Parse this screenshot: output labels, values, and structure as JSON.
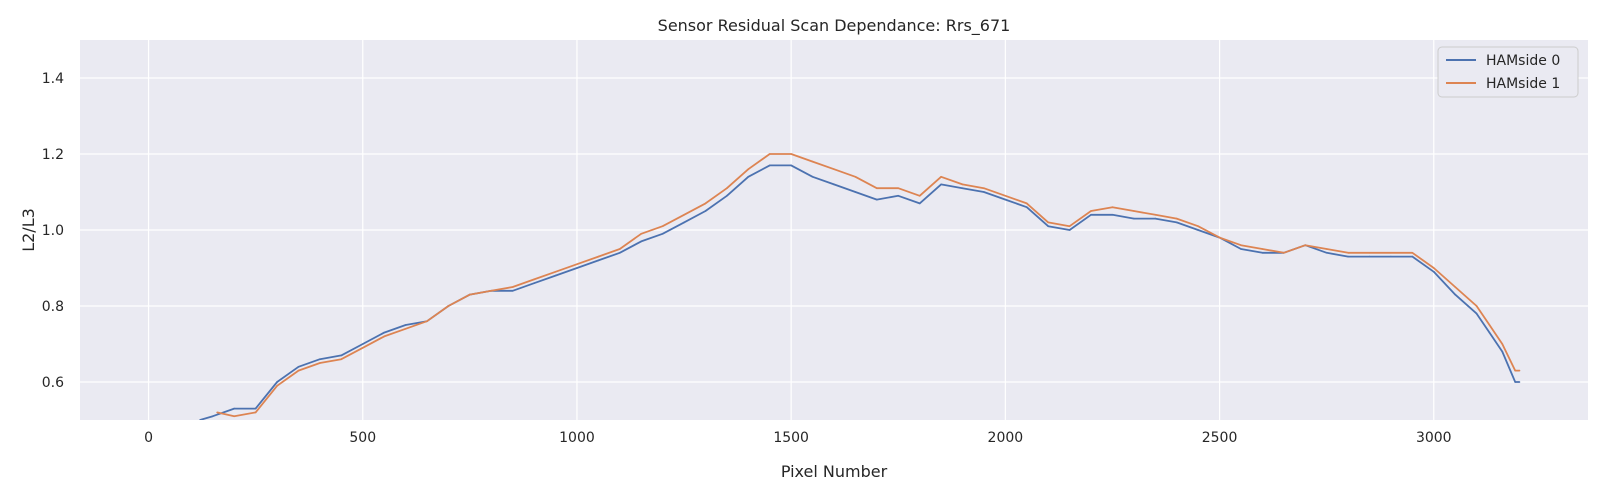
{
  "chart_data": {
    "type": "line",
    "title": "Sensor Residual Scan Dependance: Rrs_671",
    "xlabel": "Pixel Number",
    "ylabel": "L2/L3",
    "xlim": [
      -160,
      3360
    ],
    "ylim": [
      0.5,
      1.5
    ],
    "xticks": [
      0,
      500,
      1000,
      1500,
      2000,
      2500,
      3000
    ],
    "xtick_labels": [
      "0",
      "500",
      "1000",
      "1500",
      "2000",
      "2500",
      "3000"
    ],
    "yticks": [
      0.6,
      0.8,
      1.0,
      1.2,
      1.4
    ],
    "ytick_labels": [
      "0.6",
      "0.8",
      "1.0",
      "1.2",
      "1.4"
    ],
    "grid": true,
    "legend_position": "upper right",
    "plot_background": "#eaeaf2",
    "series": [
      {
        "name": "HAMside 0",
        "color": "#4c72b0",
        "x": [
          120,
          150,
          200,
          250,
          300,
          350,
          400,
          450,
          500,
          550,
          600,
          650,
          700,
          750,
          800,
          850,
          900,
          950,
          1000,
          1050,
          1100,
          1150,
          1200,
          1250,
          1300,
          1350,
          1400,
          1450,
          1500,
          1550,
          1600,
          1650,
          1700,
          1750,
          1800,
          1850,
          1900,
          1950,
          2000,
          2050,
          2100,
          2150,
          2200,
          2250,
          2300,
          2350,
          2400,
          2450,
          2500,
          2550,
          2600,
          2650,
          2700,
          2750,
          2800,
          2850,
          2900,
          2950,
          3000,
          3050,
          3100,
          3130,
          3160,
          3190,
          3200
        ],
        "y": [
          0.5,
          0.51,
          0.53,
          0.53,
          0.6,
          0.64,
          0.66,
          0.67,
          0.7,
          0.73,
          0.75,
          0.76,
          0.8,
          0.83,
          0.84,
          0.84,
          0.86,
          0.88,
          0.9,
          0.92,
          0.94,
          0.97,
          0.99,
          1.02,
          1.05,
          1.09,
          1.14,
          1.17,
          1.17,
          1.14,
          1.12,
          1.1,
          1.08,
          1.09,
          1.07,
          1.12,
          1.11,
          1.1,
          1.08,
          1.06,
          1.01,
          1.0,
          1.04,
          1.04,
          1.03,
          1.03,
          1.02,
          1.0,
          0.98,
          0.95,
          0.94,
          0.94,
          0.96,
          0.94,
          0.93,
          0.93,
          0.93,
          0.93,
          0.89,
          0.83,
          0.78,
          0.73,
          0.68,
          0.6,
          0.6
        ]
      },
      {
        "name": "HAMside 1",
        "color": "#dd8452",
        "x": [
          160,
          200,
          250,
          300,
          350,
          400,
          450,
          500,
          550,
          600,
          650,
          700,
          750,
          800,
          850,
          900,
          950,
          1000,
          1050,
          1100,
          1150,
          1200,
          1250,
          1300,
          1350,
          1400,
          1450,
          1500,
          1550,
          1600,
          1650,
          1700,
          1750,
          1800,
          1850,
          1900,
          1950,
          2000,
          2050,
          2100,
          2150,
          2200,
          2250,
          2300,
          2350,
          2400,
          2450,
          2500,
          2550,
          2600,
          2650,
          2700,
          2750,
          2800,
          2850,
          2900,
          2950,
          3000,
          3050,
          3100,
          3130,
          3160,
          3190,
          3200
        ],
        "y": [
          0.52,
          0.51,
          0.52,
          0.59,
          0.63,
          0.65,
          0.66,
          0.69,
          0.72,
          0.74,
          0.76,
          0.8,
          0.83,
          0.84,
          0.85,
          0.87,
          0.89,
          0.91,
          0.93,
          0.95,
          0.99,
          1.01,
          1.04,
          1.07,
          1.11,
          1.16,
          1.2,
          1.2,
          1.18,
          1.16,
          1.14,
          1.11,
          1.11,
          1.09,
          1.14,
          1.12,
          1.11,
          1.09,
          1.07,
          1.02,
          1.01,
          1.05,
          1.06,
          1.05,
          1.04,
          1.03,
          1.01,
          0.98,
          0.96,
          0.95,
          0.94,
          0.96,
          0.95,
          0.94,
          0.94,
          0.94,
          0.94,
          0.9,
          0.85,
          0.8,
          0.75,
          0.7,
          0.63,
          0.63
        ]
      }
    ]
  }
}
